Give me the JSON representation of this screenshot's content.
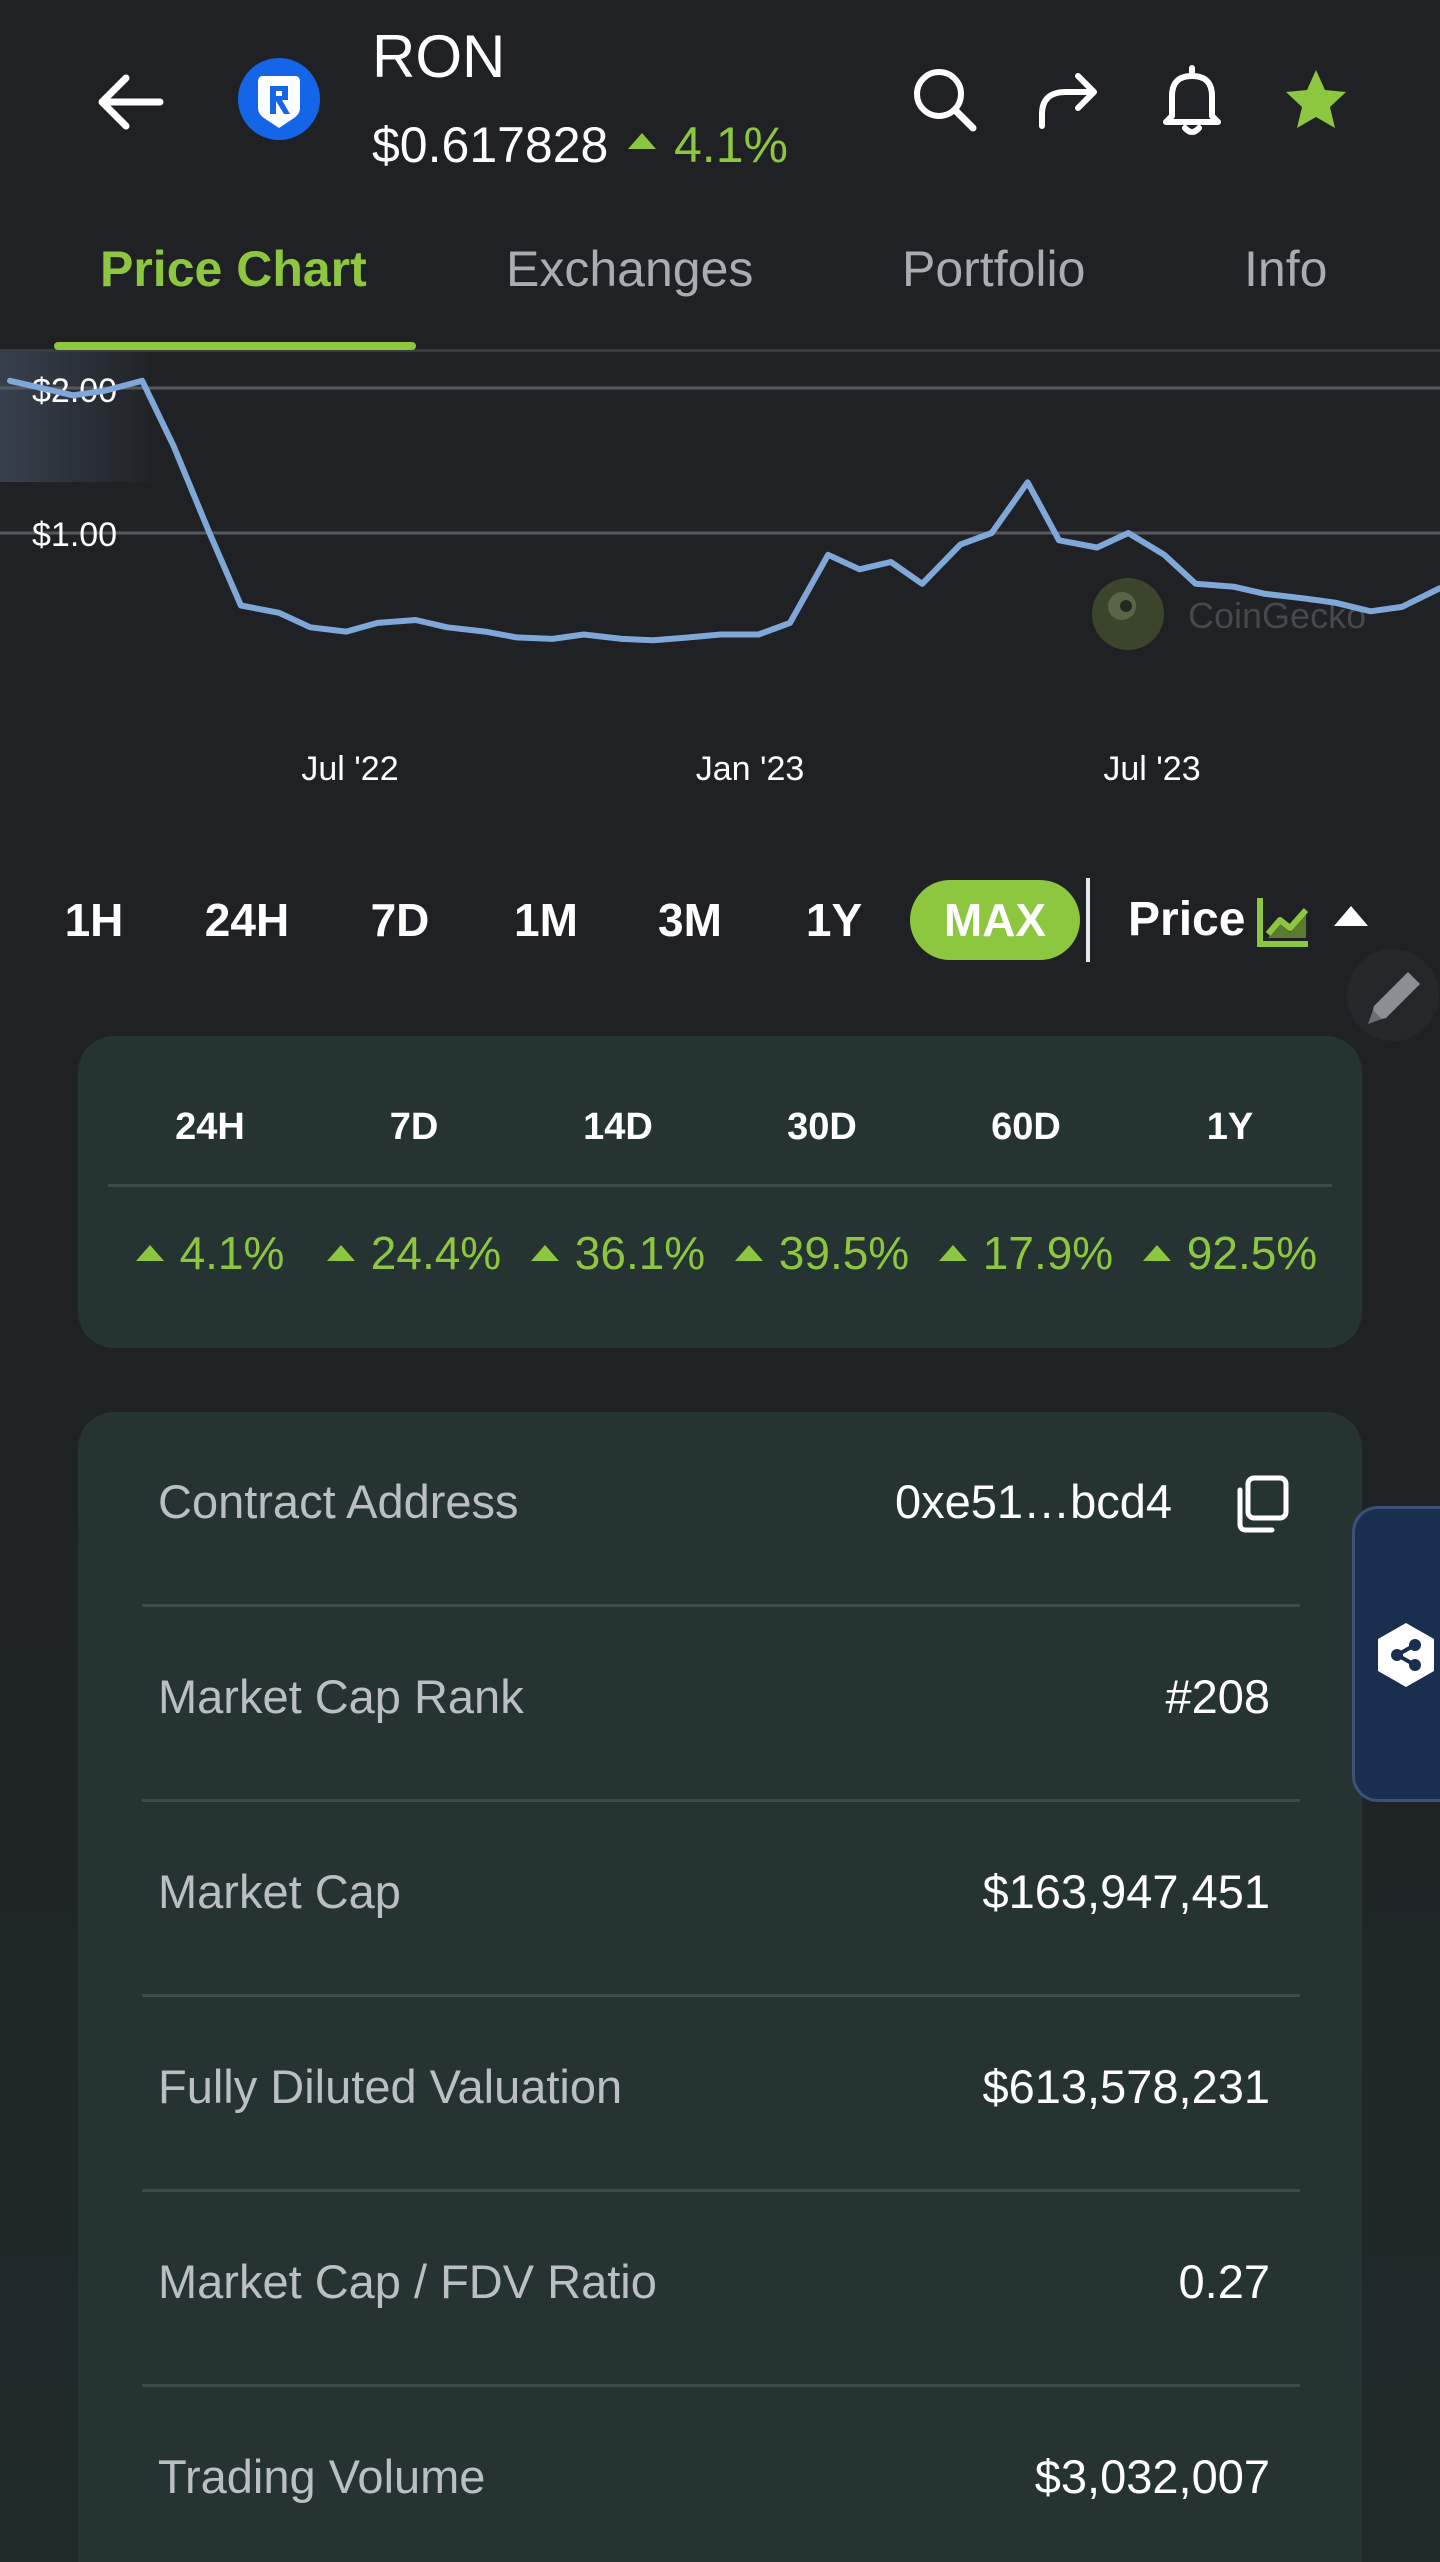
{
  "header": {
    "symbol": "RON",
    "price": "$0.617828",
    "change_24h": "4.1%",
    "icons": [
      "back-arrow-icon",
      "coin-logo",
      "search-icon",
      "share-icon",
      "bell-icon",
      "star-icon"
    ]
  },
  "tabs": [
    {
      "label": "Price Chart",
      "active": true
    },
    {
      "label": "Exchanges",
      "active": false
    },
    {
      "label": "Portfolio",
      "active": false
    },
    {
      "label": "Info",
      "active": false
    }
  ],
  "chart": {
    "y_ticks": [
      "$2.00",
      "$1.00"
    ],
    "x_ticks": [
      "Jul '22",
      "Jan '23",
      "Jul '23"
    ],
    "watermark": "CoinGecko",
    "line_color": "#7fa8d8"
  },
  "chart_data": {
    "type": "line",
    "x": [
      "2022-02-01",
      "2022-02-15",
      "2022-03-01",
      "2022-03-15",
      "2022-04-01",
      "2022-04-15",
      "2022-05-01",
      "2022-05-15",
      "2022-06-01",
      "2022-06-15",
      "2022-07-01",
      "2022-07-15",
      "2022-08-01",
      "2022-08-15",
      "2022-09-01",
      "2022-09-15",
      "2022-10-01",
      "2022-10-15",
      "2022-11-01",
      "2022-11-15",
      "2022-12-01",
      "2022-12-15",
      "2023-01-01",
      "2023-01-15",
      "2023-02-01",
      "2023-02-15",
      "2023-03-01",
      "2023-03-15",
      "2023-04-01",
      "2023-04-15",
      "2023-05-01",
      "2023-05-15",
      "2023-06-01",
      "2023-06-15",
      "2023-07-01",
      "2023-07-15",
      "2023-08-01",
      "2023-08-15",
      "2023-09-01",
      "2023-09-15",
      "2023-10-01",
      "2023-10-15",
      "2023-11-01"
    ],
    "series": [
      {
        "values": [
          2.05,
          2.0,
          1.95,
          1.98,
          2.05,
          1.6,
          1.0,
          0.5,
          0.45,
          0.35,
          0.32,
          0.38,
          0.4,
          0.35,
          0.32,
          0.28,
          0.27,
          0.3,
          0.27,
          0.26,
          0.28,
          0.3,
          0.3,
          0.38,
          0.85,
          0.75,
          0.8,
          0.65,
          0.92,
          1.0,
          1.35,
          0.95,
          0.9,
          1.0,
          0.85,
          0.65,
          0.63,
          0.58,
          0.55,
          0.52,
          0.46,
          0.49,
          0.62
        ]
      }
    ],
    "xlabel": "",
    "ylabel": "",
    "x_tick_labels": [
      "Jul '22",
      "Jan '23",
      "Jul '23"
    ],
    "y_tick_labels": [
      "$2.00",
      "$1.00"
    ],
    "grid": true
  },
  "range": {
    "buttons": [
      "1H",
      "24H",
      "7D",
      "1M",
      "3M",
      "1Y",
      "MAX"
    ],
    "selected": "MAX",
    "metric": "Price"
  },
  "performance": {
    "periods": [
      "24H",
      "7D",
      "14D",
      "30D",
      "60D",
      "1Y"
    ],
    "values": [
      "4.1%",
      "24.4%",
      "36.1%",
      "39.5%",
      "17.9%",
      "92.5%"
    ]
  },
  "stats": [
    {
      "label": "Contract Address",
      "value": "0xe51…bcd4"
    },
    {
      "label": "Market Cap Rank",
      "value": "#208"
    },
    {
      "label": "Market Cap",
      "value": "$163,947,451"
    },
    {
      "label": "Fully Diluted Valuation",
      "value": "$613,578,231"
    },
    {
      "label": "Market Cap / FDV Ratio",
      "value": "0.27"
    },
    {
      "label": "Trading Volume",
      "value": "$3,032,007"
    }
  ],
  "colors": {
    "accent": "#8dc63f",
    "background": "#1f2124",
    "card": "#263333"
  }
}
